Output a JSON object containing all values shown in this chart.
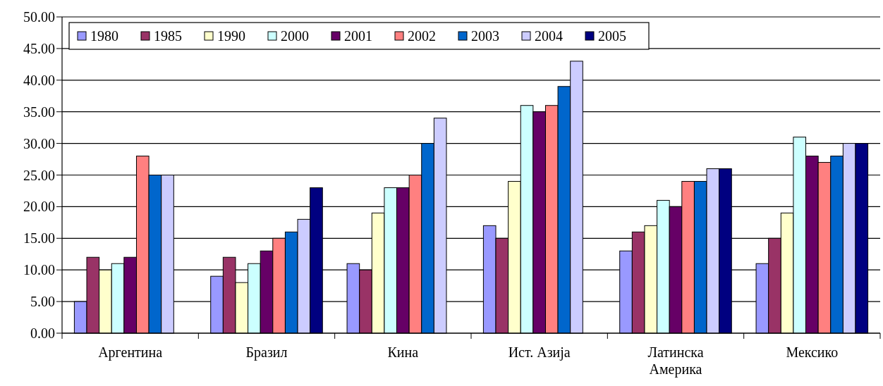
{
  "chart_data": {
    "type": "bar",
    "categories": [
      "Аргентина",
      "Бразил",
      "Кина",
      "Ист. Азија",
      "Латинска Америка",
      "Мексико"
    ],
    "series": [
      {
        "name": "1980",
        "color": "#9999ff",
        "values": [
          5,
          9,
          11,
          17,
          13,
          11
        ]
      },
      {
        "name": "1985",
        "color": "#993366",
        "values": [
          12,
          12,
          10,
          15,
          16,
          15
        ]
      },
      {
        "name": "1990",
        "color": "#ffffcc",
        "values": [
          10,
          8,
          19,
          24,
          17,
          19
        ]
      },
      {
        "name": "2000",
        "color": "#ccffff",
        "values": [
          11,
          11,
          23,
          36,
          21,
          31
        ]
      },
      {
        "name": "2001",
        "color": "#660066",
        "values": [
          12,
          13,
          23,
          35,
          20,
          28
        ]
      },
      {
        "name": "2002",
        "color": "#ff8080",
        "values": [
          28,
          15,
          25,
          36,
          24,
          27
        ]
      },
      {
        "name": "2003",
        "color": "#0066cc",
        "values": [
          25,
          16,
          30,
          39,
          24,
          28
        ]
      },
      {
        "name": "2004",
        "color": "#ccccff",
        "values": [
          25,
          18,
          34,
          43,
          26,
          30
        ]
      },
      {
        "name": "2005",
        "color": "#000080",
        "values": [
          null,
          23,
          null,
          null,
          26,
          30
        ]
      }
    ],
    "ylim": [
      0,
      50
    ],
    "yticks": [
      {
        "value": 0,
        "label": "0.00"
      },
      {
        "value": 5,
        "label": "5.00"
      },
      {
        "value": 10,
        "label": "10.00"
      },
      {
        "value": 15,
        "label": "15.00"
      },
      {
        "value": 20,
        "label": "20.00"
      },
      {
        "value": 25,
        "label": "25.00"
      },
      {
        "value": 30,
        "label": "30.00"
      },
      {
        "value": 35,
        "label": "35.00"
      },
      {
        "value": 40,
        "label": "40.00"
      },
      {
        "value": 45,
        "label": "45.00"
      },
      {
        "value": 50,
        "label": "50.00"
      }
    ],
    "grid": "y",
    "legend": "top left"
  }
}
